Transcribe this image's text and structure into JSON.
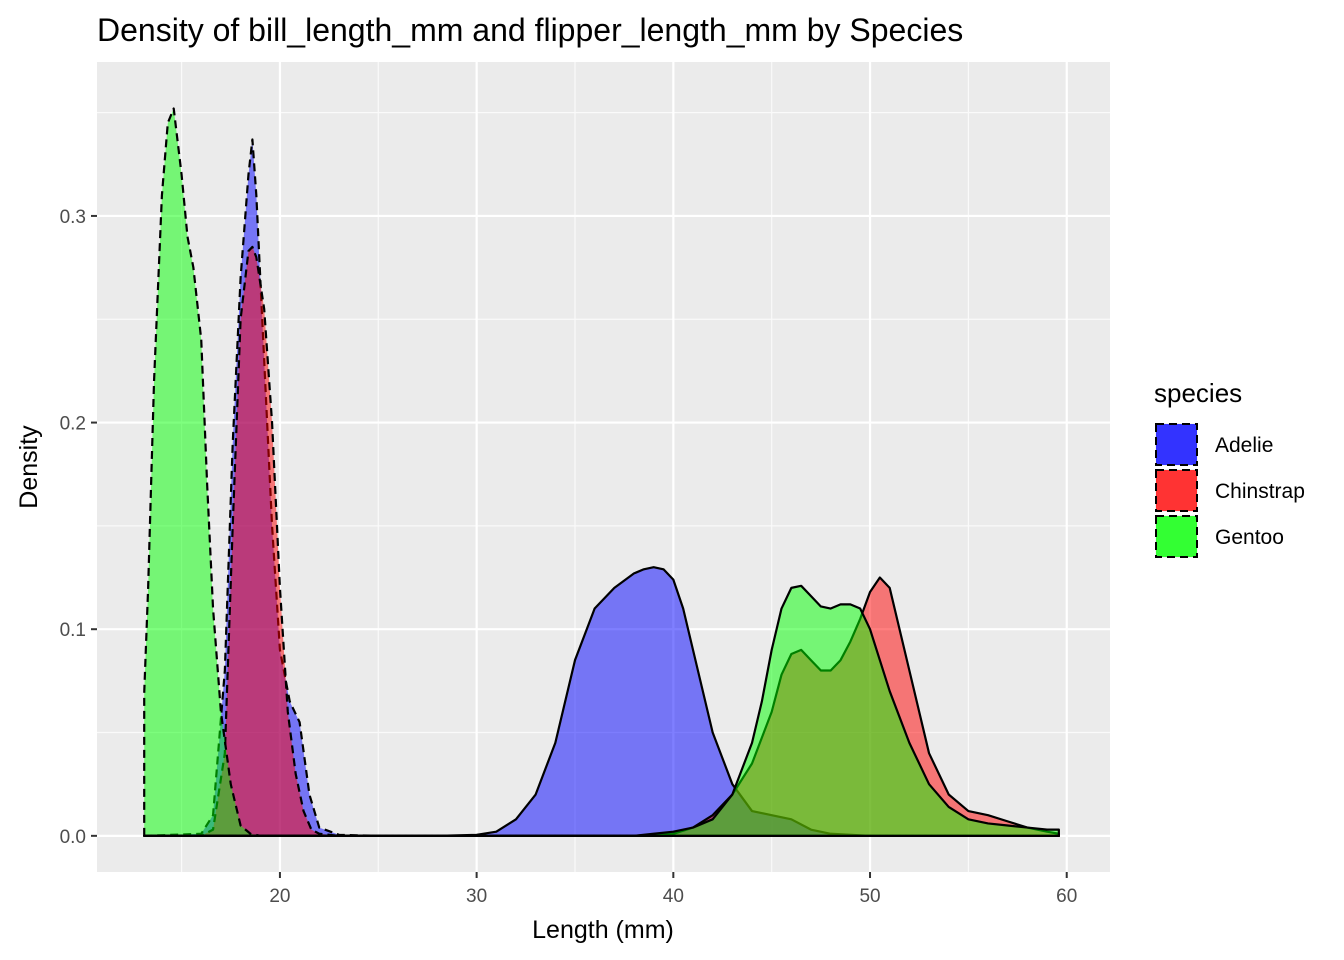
{
  "chart_data": {
    "type": "area",
    "title": "Density of bill_length_mm and flipper_length_mm by Species",
    "xlabel": "Length (mm)",
    "ylabel": "Density",
    "xlim": [
      10.7,
      62.2
    ],
    "ylim": [
      -0.0175,
      0.3745
    ],
    "x_ticks": [
      20,
      30,
      40,
      50,
      60
    ],
    "x_tick_labels": [
      "20",
      "30",
      "40",
      "50",
      "60"
    ],
    "y_ticks": [
      0.0,
      0.1,
      0.2,
      0.3
    ],
    "y_tick_labels": [
      "0.0",
      "0.1",
      "0.2",
      "0.3"
    ],
    "grid": true,
    "legend": {
      "title": "species",
      "position": "right",
      "items": [
        {
          "label": "Adelie",
          "color": "#3333ff"
        },
        {
          "label": "Chinstrap",
          "color": "#ff3333"
        },
        {
          "label": "Gentoo",
          "color": "#33ff33"
        }
      ]
    },
    "series": [
      {
        "name": "Adelie",
        "variable": "flipper_length_mm",
        "color": "#0000ff",
        "line": "dashed",
        "x": [
          13.1,
          16.0,
          16.6,
          17.2,
          17.6,
          18.0,
          18.4,
          18.6,
          18.8,
          19.2,
          19.6,
          20.0,
          20.5,
          21.0,
          21.5,
          22.0,
          23.0,
          25.0,
          30.0,
          40.0,
          50.0,
          59.6
        ],
        "y": [
          0,
          0.001,
          0.01,
          0.08,
          0.19,
          0.27,
          0.32,
          0.337,
          0.31,
          0.23,
          0.15,
          0.09,
          0.065,
          0.055,
          0.02,
          0.004,
          0.0005,
          0,
          0,
          0,
          0,
          0
        ]
      },
      {
        "name": "Chinstrap",
        "variable": "flipper_length_mm",
        "color": "#ff0000",
        "line": "dashed",
        "x": [
          13.1,
          16.0,
          16.6,
          17.2,
          17.6,
          18.0,
          18.4,
          18.6,
          18.8,
          19.2,
          19.6,
          20.0,
          20.4,
          20.8,
          21.2,
          21.6,
          22.0,
          23.0,
          25.0,
          30.0,
          40.0,
          50.0,
          59.6
        ],
        "y": [
          0,
          0,
          0.003,
          0.04,
          0.15,
          0.25,
          0.283,
          0.285,
          0.28,
          0.255,
          0.2,
          0.12,
          0.06,
          0.03,
          0.012,
          0.003,
          0.001,
          0,
          0,
          0,
          0,
          0,
          0
        ]
      },
      {
        "name": "Gentoo",
        "variable": "flipper_length_mm",
        "color": "#00ff00",
        "line": "dashed",
        "x": [
          13.1,
          13.3,
          13.6,
          14.0,
          14.3,
          14.6,
          15.0,
          15.3,
          15.6,
          16.0,
          16.3,
          16.6,
          17.0,
          17.5,
          18.0,
          18.5,
          19.0,
          20.0,
          25.0,
          30.0,
          40.0,
          50.0,
          59.6
        ],
        "y": [
          0.069,
          0.12,
          0.22,
          0.31,
          0.345,
          0.352,
          0.32,
          0.29,
          0.275,
          0.24,
          0.17,
          0.11,
          0.06,
          0.025,
          0.005,
          0.001,
          0,
          0,
          0,
          0,
          0,
          0,
          0
        ]
      },
      {
        "name": "Adelie",
        "variable": "bill_length_mm",
        "color": "#0000ff",
        "line": "solid",
        "x": [
          13.1,
          20.0,
          25.0,
          28.0,
          30.0,
          31.0,
          32.0,
          33.0,
          34.0,
          35.0,
          36.0,
          37.0,
          38.0,
          38.5,
          39.0,
          39.5,
          40.0,
          40.5,
          41.0,
          42.0,
          43.0,
          44.0,
          45.0,
          46.0,
          47.0,
          48.0,
          50.0,
          55.0,
          59.6
        ],
        "y": [
          0,
          0,
          0,
          0,
          0.0005,
          0.002,
          0.008,
          0.02,
          0.045,
          0.085,
          0.11,
          0.12,
          0.127,
          0.129,
          0.13,
          0.129,
          0.124,
          0.11,
          0.09,
          0.05,
          0.025,
          0.012,
          0.01,
          0.008,
          0.003,
          0.001,
          0,
          0,
          0
        ]
      },
      {
        "name": "Chinstrap",
        "variable": "bill_length_mm",
        "color": "#ff0000",
        "line": "solid",
        "x": [
          13.1,
          30.0,
          38.0,
          40.0,
          41.0,
          42.0,
          43.0,
          44.0,
          45.0,
          45.5,
          46.0,
          46.5,
          47.0,
          47.5,
          48.0,
          48.5,
          49.0,
          49.5,
          50.0,
          50.5,
          51.0,
          52.0,
          53.0,
          54.0,
          55.0,
          56.0,
          57.0,
          58.0,
          59.0,
          59.6
        ],
        "y": [
          0,
          0,
          0,
          0.001,
          0.004,
          0.01,
          0.02,
          0.035,
          0.06,
          0.078,
          0.088,
          0.09,
          0.085,
          0.08,
          0.08,
          0.085,
          0.094,
          0.105,
          0.118,
          0.125,
          0.12,
          0.08,
          0.04,
          0.02,
          0.012,
          0.01,
          0.007,
          0.004,
          0.002,
          0.001
        ]
      },
      {
        "name": "Gentoo",
        "variable": "bill_length_mm",
        "color": "#00ff00",
        "line": "solid",
        "x": [
          13.1,
          30.0,
          38.0,
          39.0,
          40.0,
          41.0,
          42.0,
          43.0,
          44.0,
          44.5,
          45.0,
          45.5,
          46.0,
          46.5,
          47.0,
          47.5,
          48.0,
          48.5,
          49.0,
          49.5,
          50.0,
          50.5,
          51.0,
          52.0,
          53.0,
          54.0,
          55.0,
          56.0,
          57.0,
          58.0,
          59.0,
          59.6
        ],
        "y": [
          0,
          0,
          0,
          0.001,
          0.002,
          0.004,
          0.008,
          0.02,
          0.045,
          0.065,
          0.09,
          0.11,
          0.12,
          0.121,
          0.116,
          0.111,
          0.11,
          0.112,
          0.112,
          0.11,
          0.1,
          0.085,
          0.07,
          0.045,
          0.025,
          0.014,
          0.008,
          0.006,
          0.005,
          0.004,
          0.003,
          0.003
        ]
      }
    ]
  }
}
